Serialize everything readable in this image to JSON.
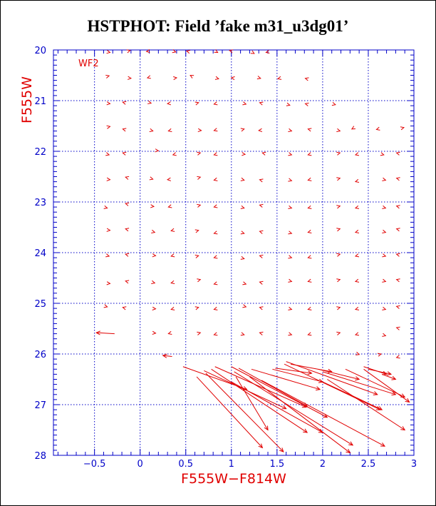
{
  "chart_data": {
    "type": "vector",
    "title": "HSTPHOT: Field ’fake m31_u3dg01’",
    "xlabel": "F555W−F814W",
    "ylabel": "F555W",
    "annotation": "WF2",
    "xlim": [
      -0.95,
      3.0
    ],
    "ylim": [
      28,
      20
    ],
    "y_inverted": true,
    "grid": true,
    "grid_style": "dotted",
    "x_ticks": [
      -0.5,
      0,
      0.5,
      1,
      1.5,
      2,
      2.5,
      3
    ],
    "x_tick_labels": [
      "−0.5",
      "0",
      "0.5",
      "1",
      "1.5",
      "2",
      "2.5",
      "3"
    ],
    "y_ticks": [
      20,
      21,
      22,
      23,
      24,
      25,
      26,
      27,
      28
    ],
    "y_tick_labels": [
      "20",
      "21",
      "22",
      "23",
      "24",
      "25",
      "26",
      "27",
      "28"
    ],
    "colors": {
      "axis": "#0000c8",
      "grid": "#0000c8",
      "data": "#e00000",
      "label": "#e00000"
    },
    "vectors": [
      {
        "x": -0.38,
        "y": 20.03,
        "dx": 0.05,
        "dy": 0.02
      },
      {
        "x": -0.15,
        "y": 20.03,
        "dx": 0.04,
        "dy": -0.02
      },
      {
        "x": 0.12,
        "y": 20.02,
        "dx": -0.05,
        "dy": 0.01
      },
      {
        "x": 0.35,
        "y": 20.02,
        "dx": 0.04,
        "dy": 0.02
      },
      {
        "x": 0.55,
        "y": 20.04,
        "dx": -0.04,
        "dy": -0.02
      },
      {
        "x": 0.82,
        "y": 20.02,
        "dx": 0.03,
        "dy": 0.03
      },
      {
        "x": 1.02,
        "y": 20.03,
        "dx": -0.04,
        "dy": -0.02
      },
      {
        "x": 1.22,
        "y": 20.04,
        "dx": 0.03,
        "dy": 0.03
      },
      {
        "x": 1.42,
        "y": 20.03,
        "dx": -0.04,
        "dy": 0.02
      },
      {
        "x": -0.38,
        "y": 20.53,
        "dx": 0.04,
        "dy": -0.02
      },
      {
        "x": -0.15,
        "y": 20.55,
        "dx": 0.05,
        "dy": 0.01
      },
      {
        "x": 0.12,
        "y": 20.53,
        "dx": -0.04,
        "dy": 0.02
      },
      {
        "x": 0.35,
        "y": 20.56,
        "dx": 0.05,
        "dy": -0.01
      },
      {
        "x": 0.58,
        "y": 20.53,
        "dx": -0.03,
        "dy": -0.03
      },
      {
        "x": 0.82,
        "y": 20.55,
        "dx": 0.04,
        "dy": 0.02
      },
      {
        "x": 1.05,
        "y": 20.56,
        "dx": -0.05,
        "dy": -0.01
      },
      {
        "x": 1.28,
        "y": 20.54,
        "dx": 0.04,
        "dy": 0.02
      },
      {
        "x": 1.55,
        "y": 20.55,
        "dx": -0.04,
        "dy": 0.02
      },
      {
        "x": 1.85,
        "y": 20.58,
        "dx": -0.04,
        "dy": -0.02
      },
      {
        "x": -0.38,
        "y": 21.05,
        "dx": 0.05,
        "dy": 0.01
      },
      {
        "x": -0.15,
        "y": 21.05,
        "dx": -0.04,
        "dy": -0.02
      },
      {
        "x": 0.08,
        "y": 21.03,
        "dx": 0.04,
        "dy": 0.02
      },
      {
        "x": 0.35,
        "y": 21.05,
        "dx": -0.05,
        "dy": 0.01
      },
      {
        "x": 0.6,
        "y": 21.06,
        "dx": 0.04,
        "dy": -0.02
      },
      {
        "x": 0.85,
        "y": 21.05,
        "dx": -0.04,
        "dy": 0.02
      },
      {
        "x": 1.12,
        "y": 21.05,
        "dx": 0.04,
        "dy": 0.02
      },
      {
        "x": 1.35,
        "y": 21.06,
        "dx": -0.04,
        "dy": -0.02
      },
      {
        "x": 1.6,
        "y": 21.07,
        "dx": 0.04,
        "dy": 0.02
      },
      {
        "x": 1.85,
        "y": 21.08,
        "dx": -0.04,
        "dy": -0.02
      },
      {
        "x": 2.1,
        "y": 21.06,
        "dx": 0.04,
        "dy": 0.02
      },
      {
        "x": -0.38,
        "y": 21.53,
        "dx": 0.05,
        "dy": -0.02
      },
      {
        "x": -0.15,
        "y": 21.58,
        "dx": -0.04,
        "dy": -0.02
      },
      {
        "x": 0.1,
        "y": 21.58,
        "dx": 0.04,
        "dy": 0.02
      },
      {
        "x": 0.35,
        "y": 21.58,
        "dx": -0.04,
        "dy": 0.02
      },
      {
        "x": 0.62,
        "y": 21.58,
        "dx": 0.05,
        "dy": 0.01
      },
      {
        "x": 0.85,
        "y": 21.57,
        "dx": -0.04,
        "dy": 0.02
      },
      {
        "x": 1.1,
        "y": 21.58,
        "dx": 0.04,
        "dy": -0.02
      },
      {
        "x": 1.35,
        "y": 21.58,
        "dx": -0.05,
        "dy": 0.01
      },
      {
        "x": 1.62,
        "y": 21.58,
        "dx": 0.04,
        "dy": 0.02
      },
      {
        "x": 1.88,
        "y": 21.58,
        "dx": -0.04,
        "dy": -0.02
      },
      {
        "x": 2.15,
        "y": 21.58,
        "dx": 0.04,
        "dy": 0.02
      },
      {
        "x": 2.35,
        "y": 21.53,
        "dx": -0.03,
        "dy": 0.03
      },
      {
        "x": 2.63,
        "y": 21.55,
        "dx": -0.04,
        "dy": 0.02
      },
      {
        "x": 2.85,
        "y": 21.55,
        "dx": 0.04,
        "dy": -0.02
      },
      {
        "x": -0.38,
        "y": 22.05,
        "dx": 0.04,
        "dy": 0.02
      },
      {
        "x": -0.15,
        "y": 22.05,
        "dx": -0.04,
        "dy": -0.02
      },
      {
        "x": 0.15,
        "y": 21.98,
        "dx": 0.05,
        "dy": 0.01
      },
      {
        "x": 0.4,
        "y": 22.05,
        "dx": -0.04,
        "dy": 0.02
      },
      {
        "x": 0.62,
        "y": 22.05,
        "dx": 0.04,
        "dy": -0.02
      },
      {
        "x": 0.85,
        "y": 22.05,
        "dx": -0.04,
        "dy": 0.02
      },
      {
        "x": 1.1,
        "y": 22.05,
        "dx": 0.05,
        "dy": 0.01
      },
      {
        "x": 1.38,
        "y": 22.05,
        "dx": -0.04,
        "dy": -0.02
      },
      {
        "x": 1.62,
        "y": 22.05,
        "dx": 0.04,
        "dy": 0.02
      },
      {
        "x": 1.88,
        "y": 22.05,
        "dx": -0.04,
        "dy": 0.02
      },
      {
        "x": 2.15,
        "y": 22.05,
        "dx": 0.04,
        "dy": -0.02
      },
      {
        "x": 2.4,
        "y": 22.05,
        "dx": -0.04,
        "dy": 0.02
      },
      {
        "x": 2.63,
        "y": 22.05,
        "dx": 0.04,
        "dy": 0.02
      },
      {
        "x": 2.85,
        "y": 22.05,
        "dx": -0.04,
        "dy": -0.02
      },
      {
        "x": -0.38,
        "y": 22.55,
        "dx": 0.05,
        "dy": 0.01
      },
      {
        "x": -0.12,
        "y": 22.53,
        "dx": -0.04,
        "dy": -0.02
      },
      {
        "x": 0.1,
        "y": 22.53,
        "dx": 0.04,
        "dy": 0.02
      },
      {
        "x": 0.35,
        "y": 22.55,
        "dx": -0.05,
        "dy": 0.01
      },
      {
        "x": 0.62,
        "y": 22.53,
        "dx": 0.04,
        "dy": -0.02
      },
      {
        "x": 0.85,
        "y": 22.55,
        "dx": -0.04,
        "dy": 0.02
      },
      {
        "x": 1.1,
        "y": 22.55,
        "dx": 0.04,
        "dy": 0.02
      },
      {
        "x": 1.35,
        "y": 22.58,
        "dx": -0.04,
        "dy": -0.02
      },
      {
        "x": 1.62,
        "y": 22.56,
        "dx": 0.04,
        "dy": 0.02
      },
      {
        "x": 1.88,
        "y": 22.55,
        "dx": -0.04,
        "dy": 0.02
      },
      {
        "x": 2.15,
        "y": 22.55,
        "dx": 0.04,
        "dy": -0.02
      },
      {
        "x": 2.4,
        "y": 22.58,
        "dx": -0.04,
        "dy": 0.02
      },
      {
        "x": 2.65,
        "y": 22.55,
        "dx": 0.04,
        "dy": 0.02
      },
      {
        "x": 2.85,
        "y": 22.55,
        "dx": -0.04,
        "dy": -0.02
      },
      {
        "x": -0.4,
        "y": 23.1,
        "dx": 0.04,
        "dy": 0.02
      },
      {
        "x": -0.12,
        "y": 23.05,
        "dx": -0.04,
        "dy": -0.02
      },
      {
        "x": 0.1,
        "y": 23.08,
        "dx": 0.05,
        "dy": 0.01
      },
      {
        "x": 0.35,
        "y": 23.08,
        "dx": -0.04,
        "dy": 0.02
      },
      {
        "x": 0.62,
        "y": 23.08,
        "dx": 0.04,
        "dy": -0.02
      },
      {
        "x": 0.85,
        "y": 23.08,
        "dx": -0.04,
        "dy": 0.02
      },
      {
        "x": 1.1,
        "y": 23.1,
        "dx": 0.04,
        "dy": 0.02
      },
      {
        "x": 1.35,
        "y": 23.08,
        "dx": -0.04,
        "dy": -0.02
      },
      {
        "x": 1.62,
        "y": 23.1,
        "dx": 0.04,
        "dy": 0.02
      },
      {
        "x": 1.88,
        "y": 23.1,
        "dx": -0.04,
        "dy": 0.02
      },
      {
        "x": 2.15,
        "y": 23.1,
        "dx": 0.04,
        "dy": -0.02
      },
      {
        "x": 2.4,
        "y": 23.1,
        "dx": -0.04,
        "dy": 0.02
      },
      {
        "x": 2.65,
        "y": 23.1,
        "dx": 0.04,
        "dy": 0.02
      },
      {
        "x": 2.85,
        "y": 23.1,
        "dx": -0.04,
        "dy": -0.02
      },
      {
        "x": -0.38,
        "y": 23.55,
        "dx": 0.05,
        "dy": 0.01
      },
      {
        "x": -0.12,
        "y": 23.55,
        "dx": -0.04,
        "dy": -0.02
      },
      {
        "x": 0.12,
        "y": 23.58,
        "dx": 0.04,
        "dy": 0.02
      },
      {
        "x": 0.38,
        "y": 23.55,
        "dx": -0.04,
        "dy": 0.02
      },
      {
        "x": 0.6,
        "y": 23.58,
        "dx": 0.04,
        "dy": -0.02
      },
      {
        "x": 0.85,
        "y": 23.6,
        "dx": -0.04,
        "dy": 0.02
      },
      {
        "x": 1.1,
        "y": 23.6,
        "dx": 0.04,
        "dy": 0.02
      },
      {
        "x": 1.35,
        "y": 23.6,
        "dx": -0.04,
        "dy": -0.02
      },
      {
        "x": 1.62,
        "y": 23.6,
        "dx": 0.04,
        "dy": 0.02
      },
      {
        "x": 1.88,
        "y": 23.58,
        "dx": -0.04,
        "dy": 0.02
      },
      {
        "x": 2.15,
        "y": 23.55,
        "dx": 0.04,
        "dy": -0.02
      },
      {
        "x": 2.4,
        "y": 23.58,
        "dx": -0.04,
        "dy": 0.02
      },
      {
        "x": 2.65,
        "y": 23.58,
        "dx": 0.04,
        "dy": 0.02
      },
      {
        "x": 2.85,
        "y": 23.55,
        "dx": -0.04,
        "dy": -0.02
      },
      {
        "x": -0.38,
        "y": 24.05,
        "dx": 0.04,
        "dy": 0.02
      },
      {
        "x": -0.12,
        "y": 24.05,
        "dx": -0.04,
        "dy": -0.02
      },
      {
        "x": 0.12,
        "y": 24.05,
        "dx": 0.05,
        "dy": 0.01
      },
      {
        "x": 0.38,
        "y": 24.05,
        "dx": -0.04,
        "dy": 0.02
      },
      {
        "x": 0.6,
        "y": 24.08,
        "dx": 0.04,
        "dy": -0.02
      },
      {
        "x": 0.85,
        "y": 24.08,
        "dx": -0.04,
        "dy": 0.02
      },
      {
        "x": 1.1,
        "y": 24.1,
        "dx": 0.04,
        "dy": 0.02
      },
      {
        "x": 1.35,
        "y": 24.08,
        "dx": -0.04,
        "dy": -0.02
      },
      {
        "x": 1.62,
        "y": 24.08,
        "dx": 0.04,
        "dy": 0.02
      },
      {
        "x": 1.88,
        "y": 24.08,
        "dx": -0.04,
        "dy": 0.02
      },
      {
        "x": 2.15,
        "y": 24.05,
        "dx": 0.04,
        "dy": -0.02
      },
      {
        "x": 2.4,
        "y": 24.05,
        "dx": -0.04,
        "dy": 0.02
      },
      {
        "x": 2.65,
        "y": 24.05,
        "dx": 0.04,
        "dy": 0.02
      },
      {
        "x": 2.85,
        "y": 24.05,
        "dx": -0.04,
        "dy": -0.02
      },
      {
        "x": -0.38,
        "y": 24.6,
        "dx": 0.05,
        "dy": 0.01
      },
      {
        "x": -0.12,
        "y": 24.58,
        "dx": -0.04,
        "dy": -0.02
      },
      {
        "x": 0.12,
        "y": 24.58,
        "dx": 0.04,
        "dy": 0.02
      },
      {
        "x": 0.38,
        "y": 24.58,
        "dx": -0.04,
        "dy": 0.02
      },
      {
        "x": 0.62,
        "y": 24.55,
        "dx": 0.04,
        "dy": -0.02
      },
      {
        "x": 0.85,
        "y": 24.6,
        "dx": -0.04,
        "dy": 0.02
      },
      {
        "x": 1.12,
        "y": 24.6,
        "dx": 0.04,
        "dy": 0.02
      },
      {
        "x": 1.35,
        "y": 24.6,
        "dx": -0.04,
        "dy": -0.02
      },
      {
        "x": 1.62,
        "y": 24.55,
        "dx": 0.04,
        "dy": 0.02
      },
      {
        "x": 1.88,
        "y": 24.55,
        "dx": -0.04,
        "dy": 0.02
      },
      {
        "x": 2.15,
        "y": 24.55,
        "dx": 0.04,
        "dy": -0.02
      },
      {
        "x": 2.4,
        "y": 24.55,
        "dx": -0.04,
        "dy": 0.02
      },
      {
        "x": 2.65,
        "y": 24.55,
        "dx": 0.04,
        "dy": 0.02
      },
      {
        "x": 2.85,
        "y": 24.55,
        "dx": -0.04,
        "dy": -0.02
      },
      {
        "x": -0.4,
        "y": 25.05,
        "dx": 0.04,
        "dy": 0.02
      },
      {
        "x": -0.15,
        "y": 25.1,
        "dx": -0.04,
        "dy": -0.02
      },
      {
        "x": 0.12,
        "y": 25.1,
        "dx": 0.05,
        "dy": 0.01
      },
      {
        "x": 0.38,
        "y": 25.1,
        "dx": -0.04,
        "dy": 0.02
      },
      {
        "x": 0.6,
        "y": 25.1,
        "dx": 0.04,
        "dy": -0.02
      },
      {
        "x": 0.85,
        "y": 25.1,
        "dx": -0.04,
        "dy": 0.02
      },
      {
        "x": 1.12,
        "y": 25.05,
        "dx": 0.04,
        "dy": 0.02
      },
      {
        "x": 1.35,
        "y": 25.1,
        "dx": -0.04,
        "dy": -0.02
      },
      {
        "x": 1.62,
        "y": 25.1,
        "dx": 0.04,
        "dy": 0.02
      },
      {
        "x": 1.88,
        "y": 25.1,
        "dx": -0.04,
        "dy": 0.02
      },
      {
        "x": 2.15,
        "y": 25.1,
        "dx": 0.04,
        "dy": -0.02
      },
      {
        "x": 2.4,
        "y": 25.1,
        "dx": -0.04,
        "dy": 0.02
      },
      {
        "x": 2.65,
        "y": 25.1,
        "dx": 0.04,
        "dy": 0.02
      },
      {
        "x": 2.85,
        "y": 25.08,
        "dx": -0.04,
        "dy": -0.02
      },
      {
        "x": -0.28,
        "y": 25.6,
        "dx": -0.2,
        "dy": -0.02
      },
      {
        "x": 0.12,
        "y": 25.58,
        "dx": 0.05,
        "dy": 0.01
      },
      {
        "x": 0.35,
        "y": 25.58,
        "dx": -0.04,
        "dy": 0.02
      },
      {
        "x": 0.62,
        "y": 25.6,
        "dx": 0.04,
        "dy": -0.02
      },
      {
        "x": 0.85,
        "y": 25.6,
        "dx": -0.04,
        "dy": 0.02
      },
      {
        "x": 1.1,
        "y": 25.6,
        "dx": 0.04,
        "dy": 0.02
      },
      {
        "x": 1.35,
        "y": 25.6,
        "dx": -0.04,
        "dy": -0.02
      },
      {
        "x": 1.62,
        "y": 25.6,
        "dx": 0.04,
        "dy": 0.02
      },
      {
        "x": 1.88,
        "y": 25.6,
        "dx": -0.04,
        "dy": 0.02
      },
      {
        "x": 2.15,
        "y": 25.6,
        "dx": 0.04,
        "dy": -0.02
      },
      {
        "x": 2.4,
        "y": 25.6,
        "dx": -0.04,
        "dy": 0.02
      },
      {
        "x": 2.65,
        "y": 25.62,
        "dx": 0.04,
        "dy": 0.02
      },
      {
        "x": 2.85,
        "y": 25.5,
        "dx": -0.04,
        "dy": -0.02
      },
      {
        "x": 0.35,
        "y": 26.05,
        "dx": -0.1,
        "dy": -0.02
      },
      {
        "x": 2.35,
        "y": 25.98,
        "dx": 0.05,
        "dy": 0.03
      },
      {
        "x": 2.6,
        "y": 26.02,
        "dx": 0.04,
        "dy": -0.02
      },
      {
        "x": 2.85,
        "y": 26.05,
        "dx": -0.04,
        "dy": 0.02
      },
      {
        "x": 0.47,
        "y": 26.25,
        "dx": 0.7,
        "dy": 0.45
      },
      {
        "x": 0.7,
        "y": 26.33,
        "dx": 0.9,
        "dy": 0.75
      },
      {
        "x": 0.78,
        "y": 26.3,
        "dx": 1.05,
        "dy": 1.25
      },
      {
        "x": 0.82,
        "y": 26.25,
        "dx": 1.0,
        "dy": 0.8
      },
      {
        "x": 1.0,
        "y": 26.25,
        "dx": 1.05,
        "dy": 1.0
      },
      {
        "x": 1.03,
        "y": 26.35,
        "dx": 1.3,
        "dy": 1.45
      },
      {
        "x": 1.05,
        "y": 26.45,
        "dx": 0.35,
        "dy": 1.05
      },
      {
        "x": 1.08,
        "y": 26.28,
        "dx": 0.75,
        "dy": 0.75
      },
      {
        "x": 1.22,
        "y": 26.3,
        "dx": 0.75,
        "dy": 0.4
      },
      {
        "x": 1.45,
        "y": 26.3,
        "dx": 0.55,
        "dy": 0.25
      },
      {
        "x": 1.58,
        "y": 26.2,
        "dx": 1.05,
        "dy": 0.9
      },
      {
        "x": 1.6,
        "y": 26.15,
        "dx": 1.0,
        "dy": 0.65
      },
      {
        "x": 1.65,
        "y": 26.2,
        "dx": 0.45,
        "dy": 0.15
      },
      {
        "x": 1.95,
        "y": 26.3,
        "dx": 0.45,
        "dy": 0.2
      },
      {
        "x": 2.0,
        "y": 26.35,
        "dx": 0.8,
        "dy": 0.45
      },
      {
        "x": 2.25,
        "y": 26.3,
        "dx": 0.65,
        "dy": 0.55
      },
      {
        "x": 2.45,
        "y": 26.25,
        "dx": 0.25,
        "dy": 0.15
      },
      {
        "x": 2.65,
        "y": 26.4,
        "dx": 0.15,
        "dy": 0.1
      },
      {
        "x": 0.62,
        "y": 26.45,
        "dx": 0.72,
        "dy": 1.4
      },
      {
        "x": 0.72,
        "y": 26.38,
        "dx": 0.85,
        "dy": 1.55
      },
      {
        "x": 1.0,
        "y": 26.55,
        "dx": 1.0,
        "dy": 1.0
      },
      {
        "x": 1.2,
        "y": 26.45,
        "dx": 1.1,
        "dy": 1.5
      },
      {
        "x": 1.33,
        "y": 26.52,
        "dx": 1.35,
        "dy": 1.3
      },
      {
        "x": 1.48,
        "y": 26.28,
        "dx": 0.4,
        "dy": 0.1
      },
      {
        "x": 2.0,
        "y": 26.55,
        "dx": 0.65,
        "dy": 0.55
      },
      {
        "x": 2.05,
        "y": 26.5,
        "dx": 0.85,
        "dy": 1.0
      },
      {
        "x": 2.45,
        "y": 26.3,
        "dx": 0.5,
        "dy": 0.65
      },
      {
        "x": 2.5,
        "y": 26.3,
        "dx": 0.25,
        "dy": 0.1
      }
    ]
  }
}
